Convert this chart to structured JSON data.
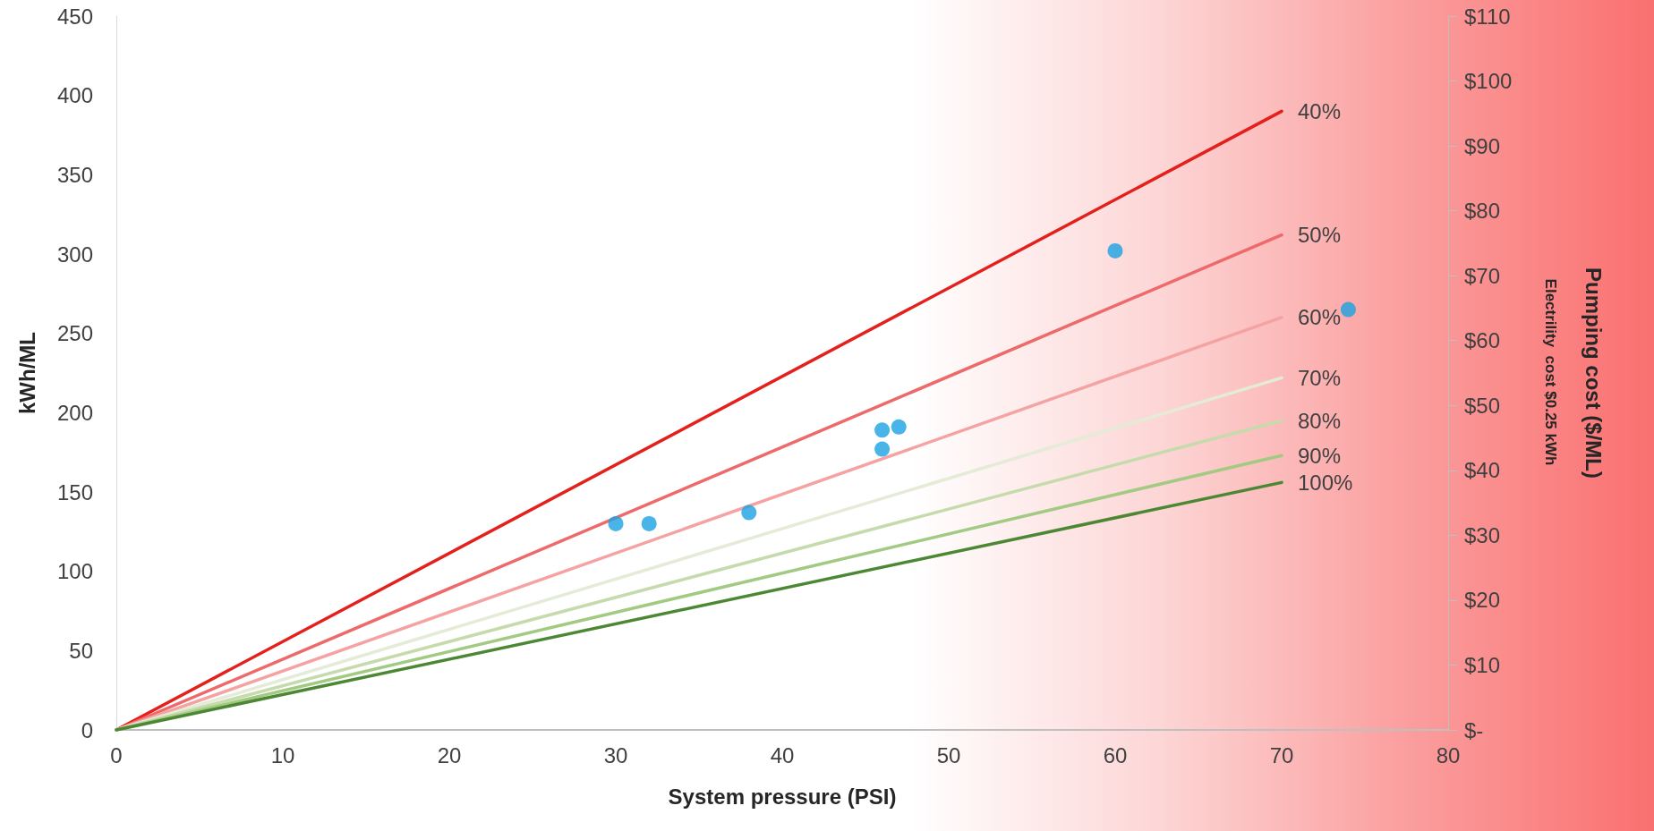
{
  "chart_data": {
    "type": "line",
    "xlabel": "System pressure (PSI)",
    "ylabel": "kWh/ML",
    "y2label": "Pumping cost ($/ML)",
    "annotations": [
      "Electrility  cost $0.25 kWh"
    ],
    "xlim": [
      0,
      80
    ],
    "xticks": [
      0,
      10,
      20,
      30,
      40,
      50,
      60,
      70,
      80
    ],
    "ylim": [
      0,
      450
    ],
    "yticks": [
      0,
      50,
      100,
      150,
      200,
      250,
      300,
      350,
      400,
      450
    ],
    "y2lim": [
      0,
      110
    ],
    "y2ticks": [
      {
        "value": 0,
        "label": "$-"
      },
      {
        "value": 10,
        "label": "$10"
      },
      {
        "value": 20,
        "label": "$20"
      },
      {
        "value": 30,
        "label": "$30"
      },
      {
        "value": 40,
        "label": "$40"
      },
      {
        "value": 50,
        "label": "$50"
      },
      {
        "value": 60,
        "label": "$60"
      },
      {
        "value": 70,
        "label": "$70"
      },
      {
        "value": 80,
        "label": "$80"
      },
      {
        "value": 90,
        "label": "$90"
      },
      {
        "value": 100,
        "label": "$100"
      },
      {
        "value": 110,
        "label": "$110"
      }
    ],
    "grid": false,
    "legend": false,
    "marker": "none",
    "line_style": "solid",
    "series": [
      {
        "name": "40%",
        "color": "#e3201c",
        "x": [
          0,
          70
        ],
        "values": [
          0,
          390
        ]
      },
      {
        "name": "50%",
        "color": "#ee6a6a",
        "x": [
          0,
          70
        ],
        "values": [
          0,
          312
        ]
      },
      {
        "name": "60%",
        "color": "#f5a2a2",
        "x": [
          0,
          70
        ],
        "values": [
          0,
          260
        ]
      },
      {
        "name": "70%",
        "color": "#e4ebd6",
        "x": [
          0,
          70
        ],
        "values": [
          0,
          222
        ]
      },
      {
        "name": "80%",
        "color": "#c6dbac",
        "x": [
          0,
          70
        ],
        "values": [
          0,
          195
        ]
      },
      {
        "name": "90%",
        "color": "#a2ca82",
        "x": [
          0,
          70
        ],
        "values": [
          0,
          173
        ]
      },
      {
        "name": "100%",
        "color": "#4c8733",
        "x": [
          0,
          70
        ],
        "values": [
          0,
          156
        ]
      },
      {
        "type": "scatter",
        "marker": "circle",
        "color": "#1ba1e2",
        "x": [
          30,
          32,
          38,
          46,
          46,
          47,
          60,
          74
        ],
        "values": [
          130,
          130,
          137,
          189,
          177,
          191,
          302,
          265
        ]
      }
    ]
  }
}
